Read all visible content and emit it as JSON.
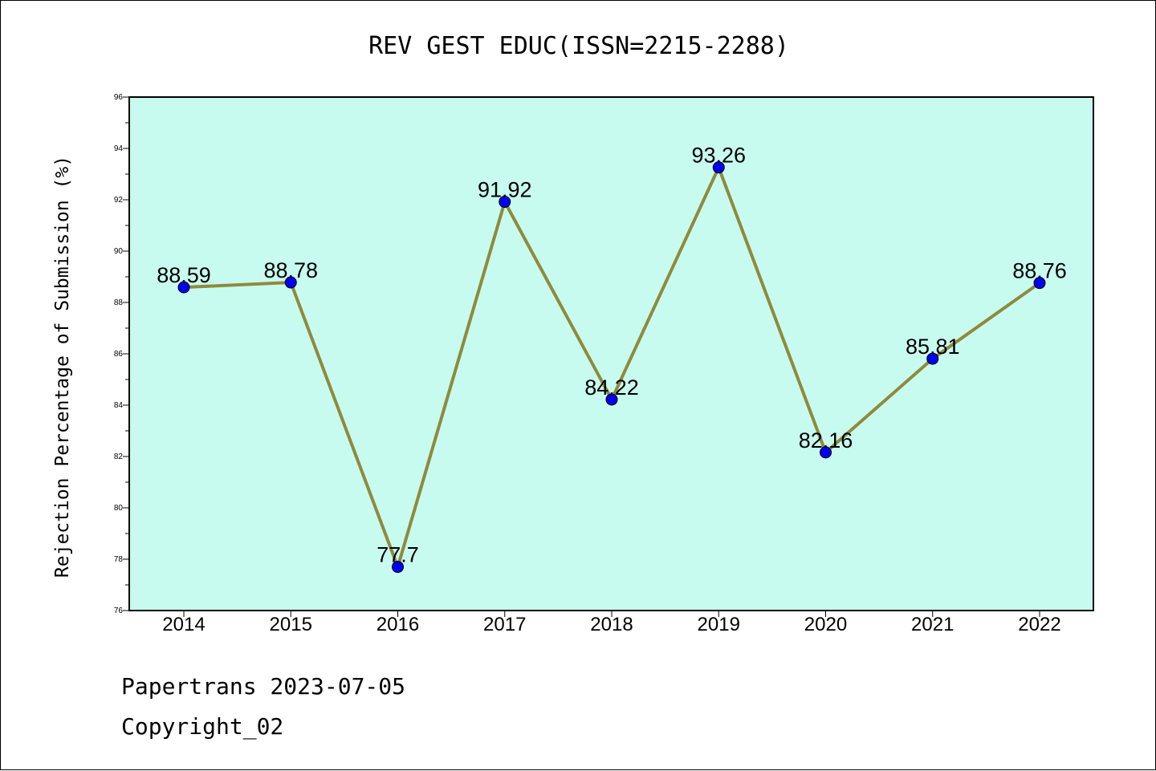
{
  "chart_data": {
    "type": "line",
    "title": "REV GEST EDUC(ISSN=2215-2288)",
    "xlabel": "",
    "ylabel": "Rejection Percentage of Submission (%)",
    "categories": [
      "2014",
      "2015",
      "2016",
      "2017",
      "2018",
      "2019",
      "2020",
      "2021",
      "2022"
    ],
    "series": [
      {
        "values": [
          88.59,
          88.78,
          77.7,
          91.92,
          84.22,
          93.26,
          82.16,
          85.81,
          88.76
        ],
        "labels": [
          "88.59",
          "88.78",
          "77.7",
          "91.92",
          "84.22",
          "93.26",
          "82.16",
          "85.81",
          "88.76"
        ]
      }
    ],
    "ylim": [
      76,
      96
    ],
    "yticks": [
      "76",
      "78",
      "80",
      "82",
      "84",
      "86",
      "88",
      "90",
      "92",
      "94",
      "96"
    ],
    "grid": false,
    "legend": "none",
    "colors": {
      "plot_background": "#c8fbef",
      "line": "#8f8a3c",
      "marker": "#0000ee"
    }
  },
  "footer": {
    "line1": "Papertrans 2023-07-05",
    "line2": "Copyright_02"
  }
}
